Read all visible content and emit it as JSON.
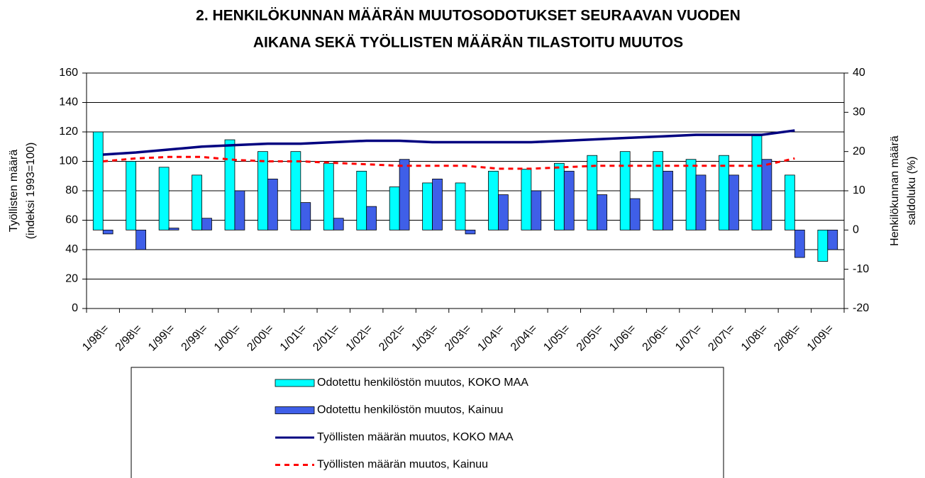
{
  "chart_data": {
    "type": "bar_line",
    "title": [
      "2. HENKILÖKUNNAN MÄÄRÄN MUUTOSODOTUKSET SEURAAVAN VUODEN",
      "AIKANA SEKÄ TYÖLLISTEN MÄÄRÄN TILASTOITU MUUTOS"
    ],
    "ylabel": [
      "Työllisten määrä",
      "(indeksi 1993=100)"
    ],
    "y2label": [
      "Henkilökunnan määrä",
      "saldoluku (%)"
    ],
    "categories": [
      "1/98\\=",
      "2/98\\=",
      "1/99\\=",
      "2/99\\=",
      "1/00\\=",
      "2/00\\=",
      "1/01\\=",
      "2/01\\=",
      "1/02\\=",
      "2/02\\=",
      "1/03\\=",
      "2/03\\=",
      "1/04\\=",
      "2/04\\=",
      "1/05\\=",
      "2/05\\=",
      "1/06\\=",
      "2/06\\=",
      "1/07\\=",
      "2/07\\=",
      "1/08\\=",
      "2/08\\=",
      "1/09\\="
    ],
    "ylim": [
      0,
      160
    ],
    "yticks": [
      0,
      20,
      40,
      60,
      80,
      100,
      120,
      140,
      160
    ],
    "y2lim": [
      -20,
      40
    ],
    "y2ticks": [
      -20,
      -10,
      0,
      10,
      20,
      30,
      40
    ],
    "grid": true,
    "series": [
      {
        "name": "Odotettu henkilöstön muutos, KOKO MAA",
        "kind": "bar",
        "axis": "y2",
        "color": "#00ffff",
        "values": [
          25,
          17.5,
          16,
          14,
          23,
          20,
          20,
          17,
          15,
          11,
          12,
          12,
          15,
          15.5,
          17,
          19,
          20,
          20,
          18,
          19,
          24,
          14,
          -8
        ]
      },
      {
        "name": "Odotettu henkilöstön muutos, Kainuu",
        "kind": "bar",
        "axis": "y2",
        "color": "#3f5fe8",
        "values": [
          -1,
          -5,
          0.5,
          3,
          10,
          13,
          7,
          3,
          6,
          18,
          13,
          -1,
          9,
          10,
          15,
          9,
          8,
          15,
          14,
          14,
          18,
          -7,
          -5
        ]
      },
      {
        "name": "Työllisten määrän muutos, KOKO MAA",
        "kind": "line",
        "axis": "y",
        "color": "#000080",
        "values": [
          104.6,
          106,
          108,
          110,
          111,
          112,
          112,
          113,
          114,
          114,
          113,
          113,
          113,
          113,
          114,
          115,
          116,
          117,
          118,
          118,
          118,
          121,
          null
        ]
      },
      {
        "name": "Työllisten määrän muutos, Kainuu",
        "kind": "line",
        "dash": true,
        "axis": "y",
        "color": "#ff0000",
        "values": [
          100,
          102,
          103,
          103,
          101,
          100,
          100,
          99,
          98,
          97,
          97,
          97,
          95,
          95,
          96,
          97,
          97,
          97,
          97,
          97,
          97,
          102,
          null
        ]
      }
    ]
  }
}
